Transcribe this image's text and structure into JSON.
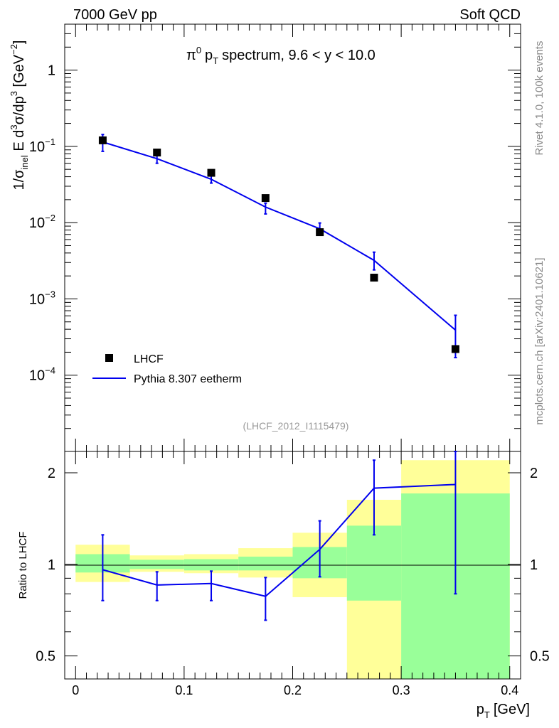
{
  "header": {
    "energy_label": "7000 GeV pp",
    "category_label": "Soft QCD"
  },
  "side_labels": {
    "generator": "Rivet 4.1.0,  100k events",
    "source": "mcplots.cern.ch [arXiv:2401.10621]"
  },
  "chart_data": [
    {
      "type": "line",
      "title_main": "π",
      "title_sup": "0",
      "title_p": "p",
      "title_sub": "T",
      "title_rest": "spectrum, 9.6 < y < 10.0",
      "analysis_id": "(LHCF_2012_I1115479)",
      "ylabel": "1/σ_inel E d³σ/dp³ [GeV⁻²]",
      "yscale": "log",
      "ylim": [
        1e-05,
        4
      ],
      "xlim": [
        -0.01,
        0.41
      ],
      "y_ticks": [
        {
          "value": 1,
          "base": "1",
          "exp": ""
        },
        {
          "value": 0.1,
          "base": "10",
          "exp": "−1"
        },
        {
          "value": 0.01,
          "base": "10",
          "exp": "−2"
        },
        {
          "value": 0.001,
          "base": "10",
          "exp": "−3"
        },
        {
          "value": 0.0001,
          "base": "10",
          "exp": "−4"
        }
      ],
      "legend": [
        {
          "name": "LHCF",
          "marker": "square"
        },
        {
          "name": "Pythia 8.307 eetherm",
          "marker": "line"
        }
      ],
      "series": [
        {
          "name": "LHCF",
          "x": [
            0.025,
            0.075,
            0.125,
            0.175,
            0.225,
            0.275,
            0.35
          ],
          "y": [
            0.12,
            0.083,
            0.045,
            0.021,
            0.0075,
            0.0019,
            0.00022
          ],
          "color": "#000000"
        },
        {
          "name": "Pythia 8.307 eetherm",
          "x": [
            0.025,
            0.075,
            0.125,
            0.175,
            0.225,
            0.275,
            0.35
          ],
          "y": [
            0.114,
            0.069,
            0.037,
            0.016,
            0.0083,
            0.0032,
            0.00039
          ],
          "yerr_lo": [
            0.086,
            0.06,
            0.033,
            0.013,
            0.0071,
            0.0024,
            0.00017
          ],
          "yerr_hi": [
            0.143,
            0.078,
            0.041,
            0.018,
            0.0099,
            0.0041,
            0.00061
          ],
          "color": "#0000ee"
        }
      ]
    },
    {
      "type": "line",
      "ylabel": "Ratio to LHCF",
      "xlabel_p": "p",
      "xlabel_sub": "T",
      "xlabel_unit": "[GeV]",
      "yscale": "log",
      "ylim": [
        0.42,
        2.35
      ],
      "xlim": [
        -0.01,
        0.41
      ],
      "x_ticks": [
        0,
        0.1,
        0.2,
        0.3,
        0.4
      ],
      "x_tick_labels": [
        "0",
        "0.1",
        "0.2",
        "0.3",
        "0.4"
      ],
      "y_ticks": [
        2,
        1,
        0.5
      ],
      "y_tick_labels": [
        "2",
        "1",
        "0.5"
      ],
      "bands": [
        {
          "x0": 0.0,
          "x1": 0.05,
          "y1_lo": 0.94,
          "y1_hi": 1.08,
          "y2_lo": 0.875,
          "y2_hi": 1.16
        },
        {
          "x0": 0.05,
          "x1": 0.1,
          "y1_lo": 0.965,
          "y1_hi": 1.035,
          "y2_lo": 0.945,
          "y2_hi": 1.07
        },
        {
          "x0": 0.1,
          "x1": 0.15,
          "y1_lo": 0.955,
          "y1_hi": 1.04,
          "y2_lo": 0.935,
          "y2_hi": 1.08
        },
        {
          "x0": 0.15,
          "x1": 0.2,
          "y1_lo": 0.955,
          "y1_hi": 1.06,
          "y2_lo": 0.905,
          "y2_hi": 1.13
        },
        {
          "x0": 0.2,
          "x1": 0.25,
          "y1_lo": 0.9,
          "y1_hi": 1.14,
          "y2_lo": 0.78,
          "y2_hi": 1.27
        },
        {
          "x0": 0.25,
          "x1": 0.3,
          "y1_lo": 0.76,
          "y1_hi": 1.34,
          "y2_lo": 0.42,
          "y2_hi": 1.63
        },
        {
          "x0": 0.3,
          "x1": 0.4,
          "y1_lo": 0.42,
          "y1_hi": 1.71,
          "y2_lo": 0.42,
          "y2_hi": 2.2
        }
      ],
      "series": [
        {
          "name": "Pythia 8.307 eetherm / LHCF",
          "x": [
            0.025,
            0.075,
            0.125,
            0.175,
            0.225,
            0.275,
            0.35
          ],
          "y": [
            0.96,
            0.855,
            0.865,
            0.785,
            1.12,
            1.78,
            1.83
          ],
          "yerr_lo": [
            0.76,
            0.76,
            0.76,
            0.655,
            0.91,
            1.25,
            0.8
          ],
          "yerr_hi": [
            1.25,
            0.945,
            0.95,
            0.905,
            1.39,
            2.2,
            2.35
          ],
          "color": "#0000ee"
        }
      ]
    }
  ]
}
